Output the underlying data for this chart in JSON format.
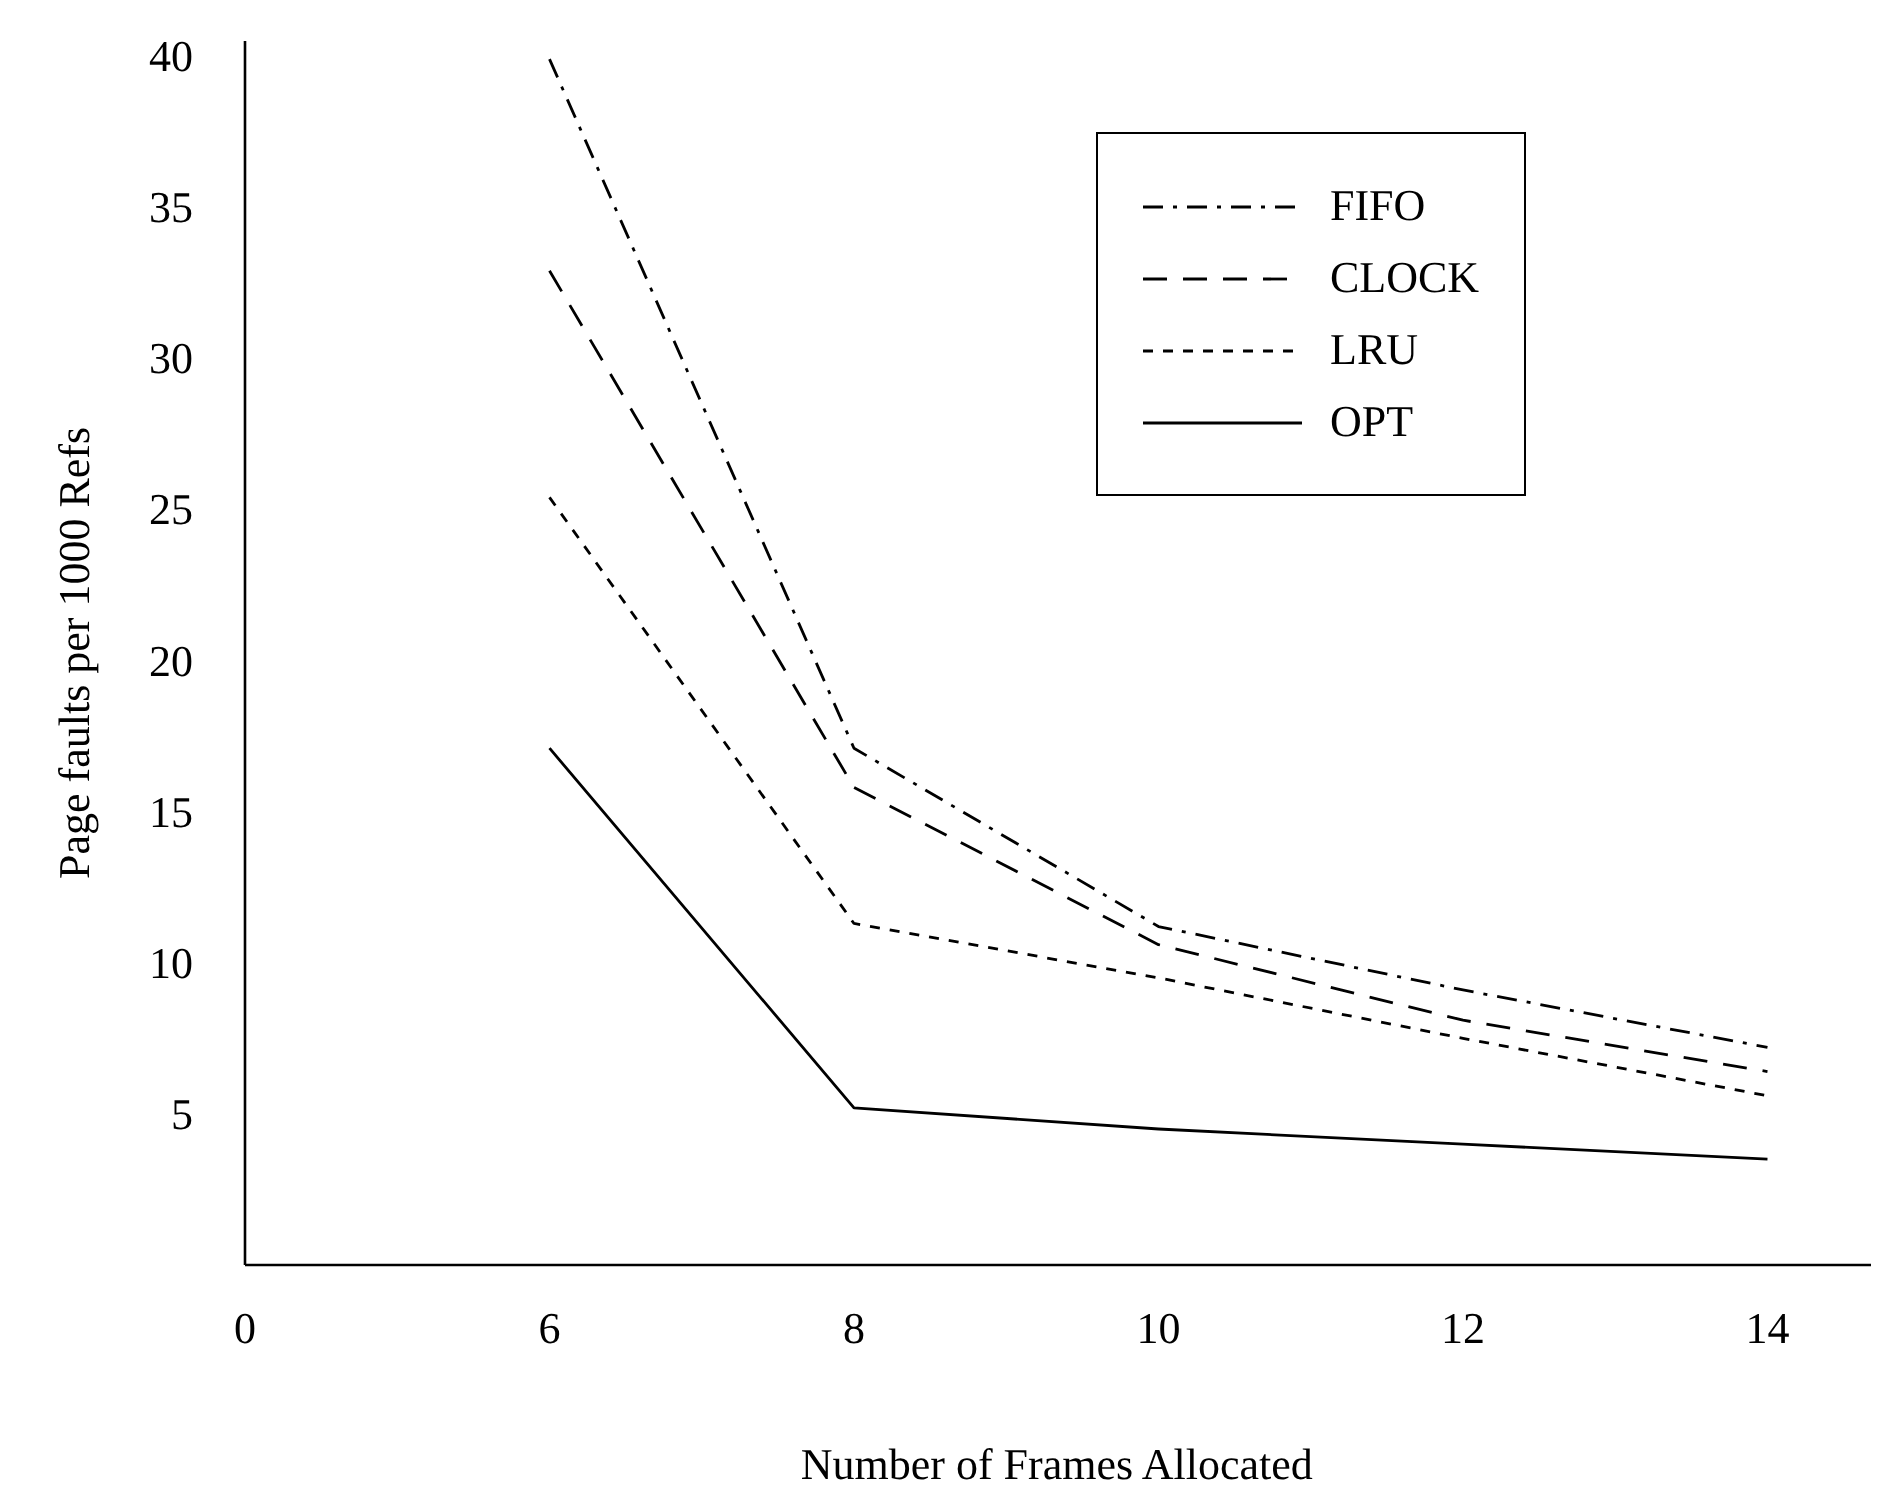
{
  "chart_data": {
    "type": "line",
    "xlabel": "Number of Frames Allocated",
    "ylabel": "Page faults per 1000 Refs",
    "categories": [
      "0",
      "6",
      "8",
      "10",
      "12",
      "14"
    ],
    "series": [
      {
        "name": "FIFO",
        "color": "#000000",
        "line_style": "dashdot",
        "values": [
          null,
          39.9,
          17.1,
          11.2,
          9.1,
          7.2
        ]
      },
      {
        "name": "CLOCK",
        "color": "#000000",
        "line_style": "dashed",
        "values": [
          null,
          32.9,
          15.8,
          10.6,
          8.1,
          6.4
        ]
      },
      {
        "name": "LRU",
        "color": "#000000",
        "line_style": "dotted",
        "values": [
          null,
          25.4,
          11.3,
          9.5,
          7.5,
          5.6
        ]
      },
      {
        "name": "OPT",
        "color": "#000000",
        "line_style": "solid",
        "values": [
          null,
          17.1,
          5.2,
          4.5,
          4.0,
          3.5
        ]
      }
    ],
    "ylim": [
      0,
      40.5
    ],
    "yticks": [
      5,
      10,
      15,
      20,
      25,
      30,
      35,
      40
    ],
    "grid": false,
    "legend": "top right",
    "marker": "none"
  }
}
